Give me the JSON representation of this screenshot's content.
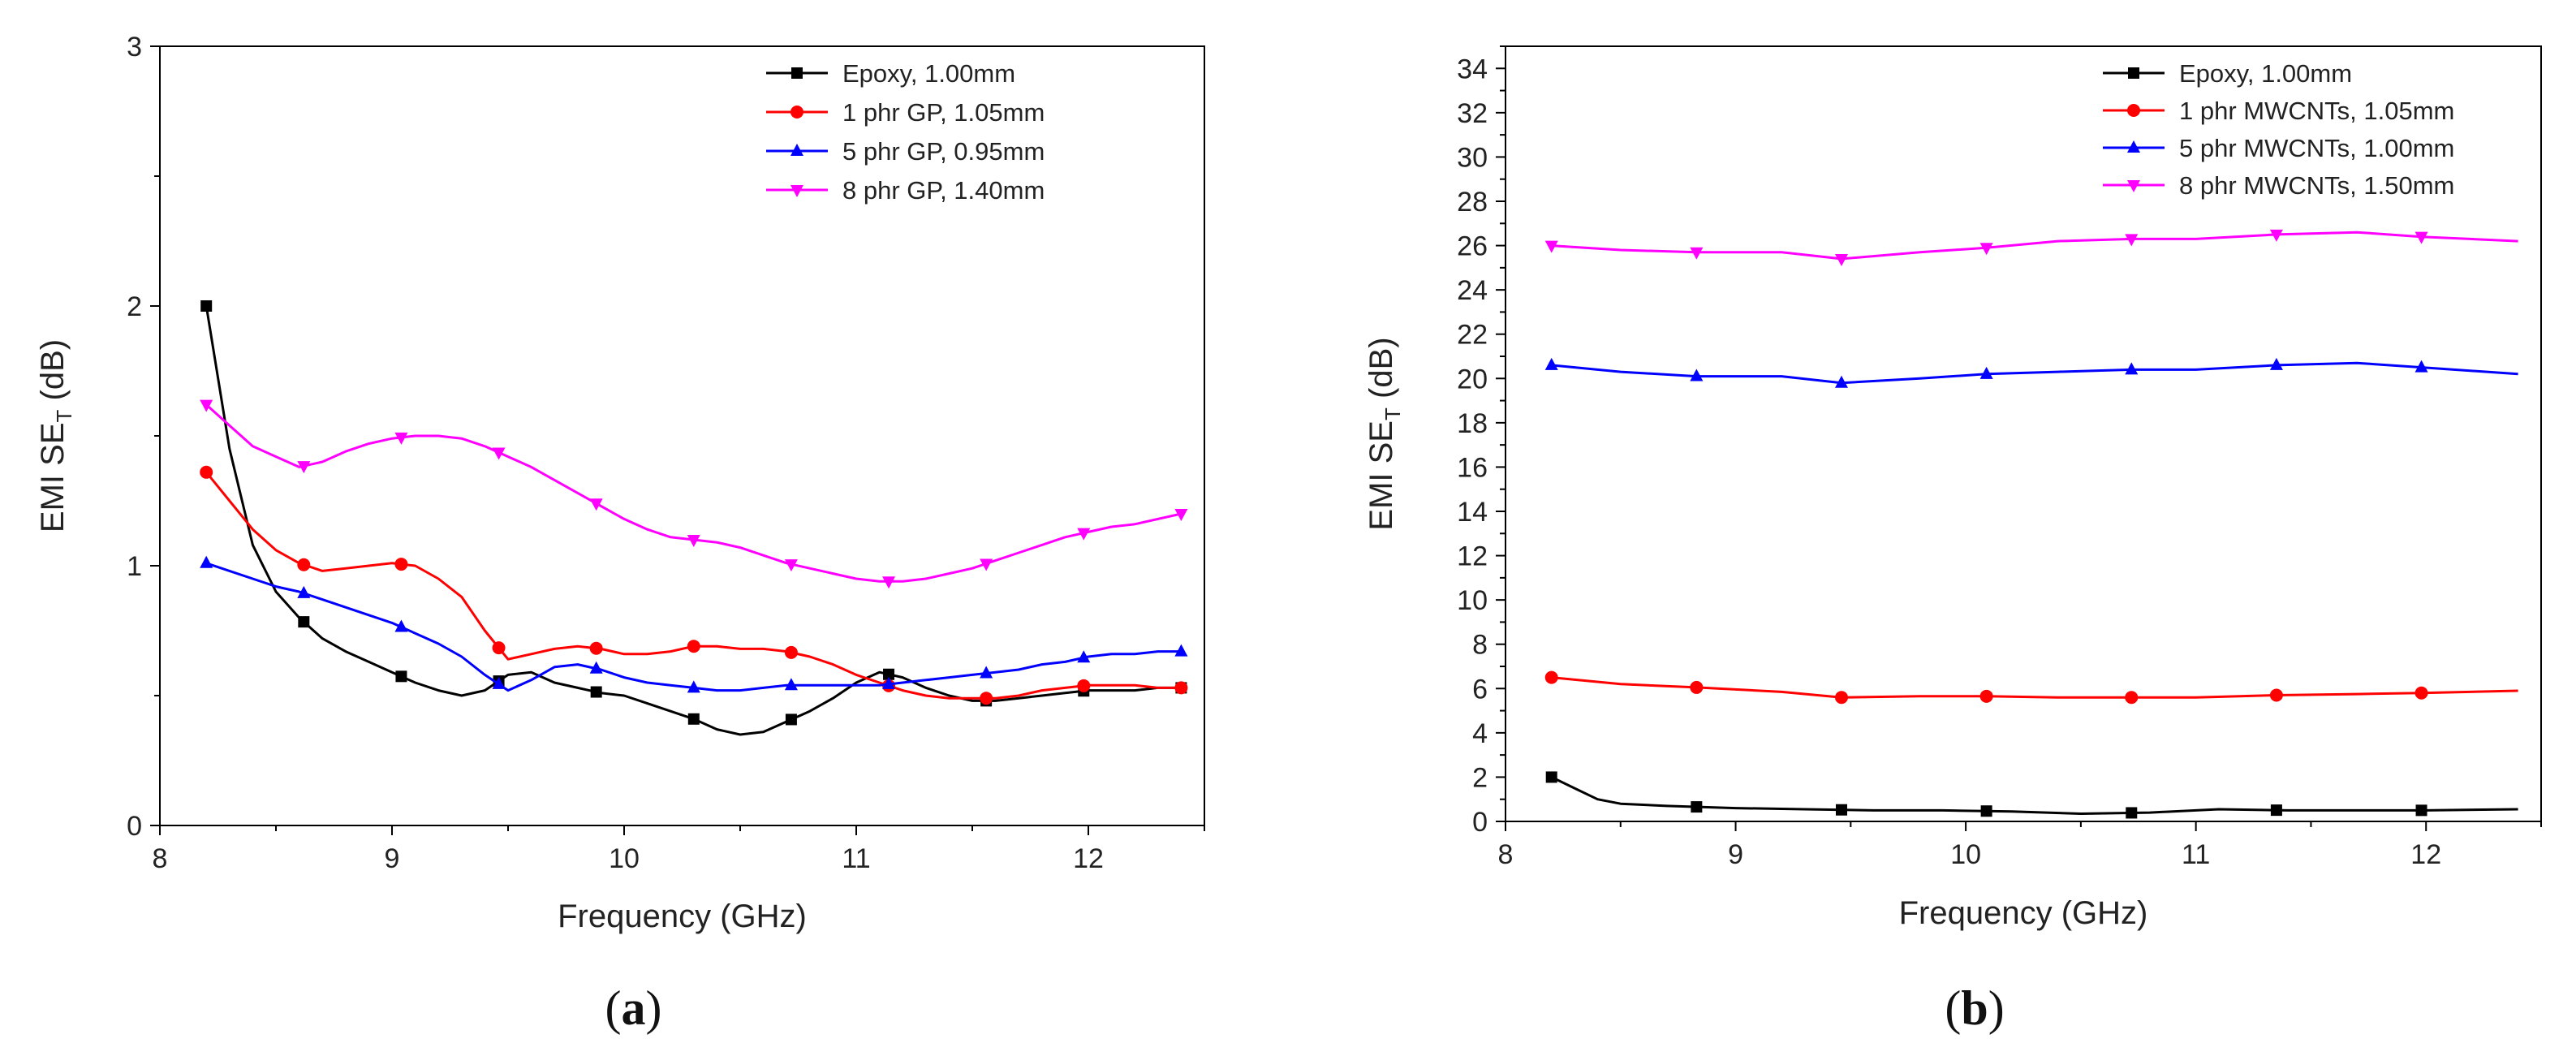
{
  "chart_data": [
    {
      "type": "line",
      "panel": "a",
      "panel_label": "a",
      "xlabel": "Frequency (GHz)",
      "ylabel": "EMI SE",
      "ylabel_sub": "T",
      "ylabel_unit": " (dB)",
      "xlim": [
        8,
        12.5
      ],
      "ylim": [
        0,
        3
      ],
      "xticks": [
        8,
        9,
        10,
        11,
        12
      ],
      "yticks": [
        0,
        1,
        2,
        3
      ],
      "legend_position": "top-right",
      "series": [
        {
          "name": "Epoxy, 1.00mm",
          "color": "#000000",
          "marker": "square",
          "marker_x": [
            8.2,
            8.62,
            9.04,
            9.46,
            9.88,
            10.3,
            10.72,
            11.14,
            11.56,
            11.98,
            12.4
          ],
          "x": [
            8.2,
            8.3,
            8.4,
            8.5,
            8.6,
            8.7,
            8.8,
            8.9,
            9.0,
            9.1,
            9.2,
            9.3,
            9.4,
            9.5,
            9.6,
            9.7,
            9.8,
            9.9,
            10.0,
            10.1,
            10.2,
            10.3,
            10.4,
            10.5,
            10.6,
            10.7,
            10.8,
            10.9,
            11.0,
            11.1,
            11.2,
            11.3,
            11.4,
            11.5,
            11.6,
            11.7,
            11.8,
            11.9,
            12.0,
            12.1,
            12.2,
            12.3,
            12.4
          ],
          "y": [
            2.0,
            1.45,
            1.08,
            0.9,
            0.8,
            0.72,
            0.67,
            0.63,
            0.59,
            0.55,
            0.52,
            0.5,
            0.52,
            0.58,
            0.59,
            0.55,
            0.53,
            0.51,
            0.5,
            0.47,
            0.44,
            0.41,
            0.37,
            0.35,
            0.36,
            0.4,
            0.44,
            0.49,
            0.55,
            0.59,
            0.57,
            0.53,
            0.5,
            0.48,
            0.48,
            0.49,
            0.5,
            0.51,
            0.52,
            0.52,
            0.52,
            0.53,
            0.53
          ]
        },
        {
          "name": "1 phr GP, 1.05mm",
          "color": "#ff0000",
          "marker": "circle",
          "marker_x": [
            8.2,
            8.62,
            9.04,
            9.46,
            9.88,
            10.3,
            10.72,
            11.14,
            11.56,
            11.98,
            12.4
          ],
          "x": [
            8.2,
            8.3,
            8.4,
            8.5,
            8.6,
            8.7,
            8.8,
            8.9,
            9.0,
            9.1,
            9.2,
            9.3,
            9.4,
            9.5,
            9.6,
            9.7,
            9.8,
            9.9,
            10.0,
            10.1,
            10.2,
            10.3,
            10.4,
            10.5,
            10.6,
            10.7,
            10.8,
            10.9,
            11.0,
            11.1,
            11.2,
            11.3,
            11.4,
            11.5,
            11.6,
            11.7,
            11.8,
            11.9,
            12.0,
            12.1,
            12.2,
            12.3,
            12.4
          ],
          "y": [
            1.36,
            1.25,
            1.14,
            1.06,
            1.01,
            0.98,
            0.99,
            1.0,
            1.01,
            1.0,
            0.95,
            0.88,
            0.75,
            0.64,
            0.66,
            0.68,
            0.69,
            0.68,
            0.66,
            0.66,
            0.67,
            0.69,
            0.69,
            0.68,
            0.68,
            0.67,
            0.65,
            0.62,
            0.58,
            0.55,
            0.52,
            0.5,
            0.49,
            0.49,
            0.49,
            0.5,
            0.52,
            0.53,
            0.54,
            0.54,
            0.54,
            0.53,
            0.53
          ]
        },
        {
          "name": "5 phr GP, 0.95mm",
          "color": "#0000ff",
          "marker": "triangle-up",
          "marker_x": [
            8.2,
            8.62,
            9.04,
            9.46,
            9.88,
            10.3,
            10.72,
            11.14,
            11.56,
            11.98,
            12.4
          ],
          "x": [
            8.2,
            8.3,
            8.4,
            8.5,
            8.6,
            8.7,
            8.8,
            8.9,
            9.0,
            9.1,
            9.2,
            9.3,
            9.4,
            9.5,
            9.6,
            9.7,
            9.8,
            9.9,
            10.0,
            10.1,
            10.2,
            10.3,
            10.4,
            10.5,
            10.6,
            10.7,
            10.8,
            10.9,
            11.0,
            11.1,
            11.2,
            11.3,
            11.4,
            11.5,
            11.6,
            11.7,
            11.8,
            11.9,
            12.0,
            12.1,
            12.2,
            12.3,
            12.4
          ],
          "y": [
            1.01,
            0.98,
            0.95,
            0.92,
            0.9,
            0.87,
            0.84,
            0.81,
            0.78,
            0.74,
            0.7,
            0.65,
            0.58,
            0.52,
            0.56,
            0.61,
            0.62,
            0.6,
            0.57,
            0.55,
            0.54,
            0.53,
            0.52,
            0.52,
            0.53,
            0.54,
            0.54,
            0.54,
            0.54,
            0.54,
            0.55,
            0.56,
            0.57,
            0.58,
            0.59,
            0.6,
            0.62,
            0.63,
            0.65,
            0.66,
            0.66,
            0.67,
            0.67
          ]
        },
        {
          "name": "8 phr GP, 1.40mm",
          "color": "#ff00ff",
          "marker": "triangle-down",
          "marker_x": [
            8.2,
            8.62,
            9.04,
            9.46,
            9.88,
            10.3,
            10.72,
            11.14,
            11.56,
            11.98,
            12.4
          ],
          "x": [
            8.2,
            8.3,
            8.4,
            8.5,
            8.6,
            8.7,
            8.8,
            8.9,
            9.0,
            9.1,
            9.2,
            9.3,
            9.4,
            9.5,
            9.6,
            9.7,
            9.8,
            9.9,
            10.0,
            10.1,
            10.2,
            10.3,
            10.4,
            10.5,
            10.6,
            10.7,
            10.8,
            10.9,
            11.0,
            11.1,
            11.2,
            11.3,
            11.4,
            11.5,
            11.6,
            11.7,
            11.8,
            11.9,
            12.0,
            12.1,
            12.2,
            12.3,
            12.4
          ],
          "y": [
            1.62,
            1.54,
            1.46,
            1.42,
            1.38,
            1.4,
            1.44,
            1.47,
            1.49,
            1.5,
            1.5,
            1.49,
            1.46,
            1.42,
            1.38,
            1.33,
            1.28,
            1.23,
            1.18,
            1.14,
            1.11,
            1.1,
            1.09,
            1.07,
            1.04,
            1.01,
            0.99,
            0.97,
            0.95,
            0.94,
            0.94,
            0.95,
            0.97,
            0.99,
            1.02,
            1.05,
            1.08,
            1.11,
            1.13,
            1.15,
            1.16,
            1.18,
            1.2
          ]
        }
      ]
    },
    {
      "type": "line",
      "panel": "b",
      "panel_label": "b",
      "xlabel": "Frequency (GHz)",
      "ylabel": "EMI SE",
      "ylabel_sub": "T",
      "ylabel_unit": " (dB)",
      "xlim": [
        8,
        12.5
      ],
      "ylim": [
        0,
        35
      ],
      "xticks": [
        8,
        9,
        10,
        11,
        12
      ],
      "yticks": [
        0,
        2,
        4,
        6,
        8,
        10,
        12,
        14,
        16,
        18,
        20,
        22,
        24,
        26,
        28,
        30,
        32,
        34
      ],
      "legend_position": "top-right",
      "series": [
        {
          "name": "Epoxy, 1.00mm",
          "color": "#000000",
          "marker": "square",
          "marker_x": [
            8.2,
            8.83,
            9.46,
            10.09,
            10.72,
            11.35,
            11.98
          ],
          "x": [
            8.2,
            8.3,
            8.4,
            8.5,
            8.7,
            9.0,
            9.3,
            9.6,
            9.9,
            10.2,
            10.5,
            10.8,
            11.1,
            11.4,
            11.7,
            12.0,
            12.4
          ],
          "y": [
            2.0,
            1.5,
            1.0,
            0.8,
            0.7,
            0.6,
            0.55,
            0.5,
            0.5,
            0.45,
            0.35,
            0.4,
            0.55,
            0.5,
            0.5,
            0.5,
            0.55
          ]
        },
        {
          "name": "1 phr MWCNTs, 1.05mm",
          "color": "#ff0000",
          "marker": "circle",
          "marker_x": [
            8.2,
            8.83,
            9.46,
            10.09,
            10.72,
            11.35,
            11.98
          ],
          "x": [
            8.2,
            8.5,
            8.83,
            9.2,
            9.46,
            9.8,
            10.09,
            10.4,
            10.72,
            11.0,
            11.35,
            11.7,
            11.98,
            12.4
          ],
          "y": [
            6.5,
            6.2,
            6.05,
            5.85,
            5.6,
            5.65,
            5.65,
            5.6,
            5.6,
            5.6,
            5.7,
            5.75,
            5.8,
            5.9
          ]
        },
        {
          "name": "5 phr MWCNTs, 1.00mm",
          "color": "#0000ff",
          "marker": "triangle-up",
          "marker_x": [
            8.2,
            8.83,
            9.46,
            10.09,
            10.72,
            11.35,
            11.98
          ],
          "x": [
            8.2,
            8.5,
            8.83,
            9.2,
            9.46,
            9.8,
            10.09,
            10.4,
            10.72,
            11.0,
            11.35,
            11.7,
            11.98,
            12.4
          ],
          "y": [
            20.6,
            20.3,
            20.1,
            20.1,
            19.8,
            20.0,
            20.2,
            20.3,
            20.4,
            20.4,
            20.6,
            20.7,
            20.5,
            20.2
          ]
        },
        {
          "name": "8 phr MWCNTs, 1.50mm",
          "color": "#ff00ff",
          "marker": "triangle-down",
          "marker_x": [
            8.2,
            8.83,
            9.46,
            10.09,
            10.72,
            11.35,
            11.98
          ],
          "x": [
            8.2,
            8.5,
            8.83,
            9.2,
            9.46,
            9.8,
            10.09,
            10.4,
            10.72,
            11.0,
            11.35,
            11.7,
            11.98,
            12.4
          ],
          "y": [
            26.0,
            25.8,
            25.7,
            25.7,
            25.4,
            25.7,
            25.9,
            26.2,
            26.3,
            26.3,
            26.5,
            26.6,
            26.4,
            26.2
          ]
        }
      ]
    }
  ]
}
